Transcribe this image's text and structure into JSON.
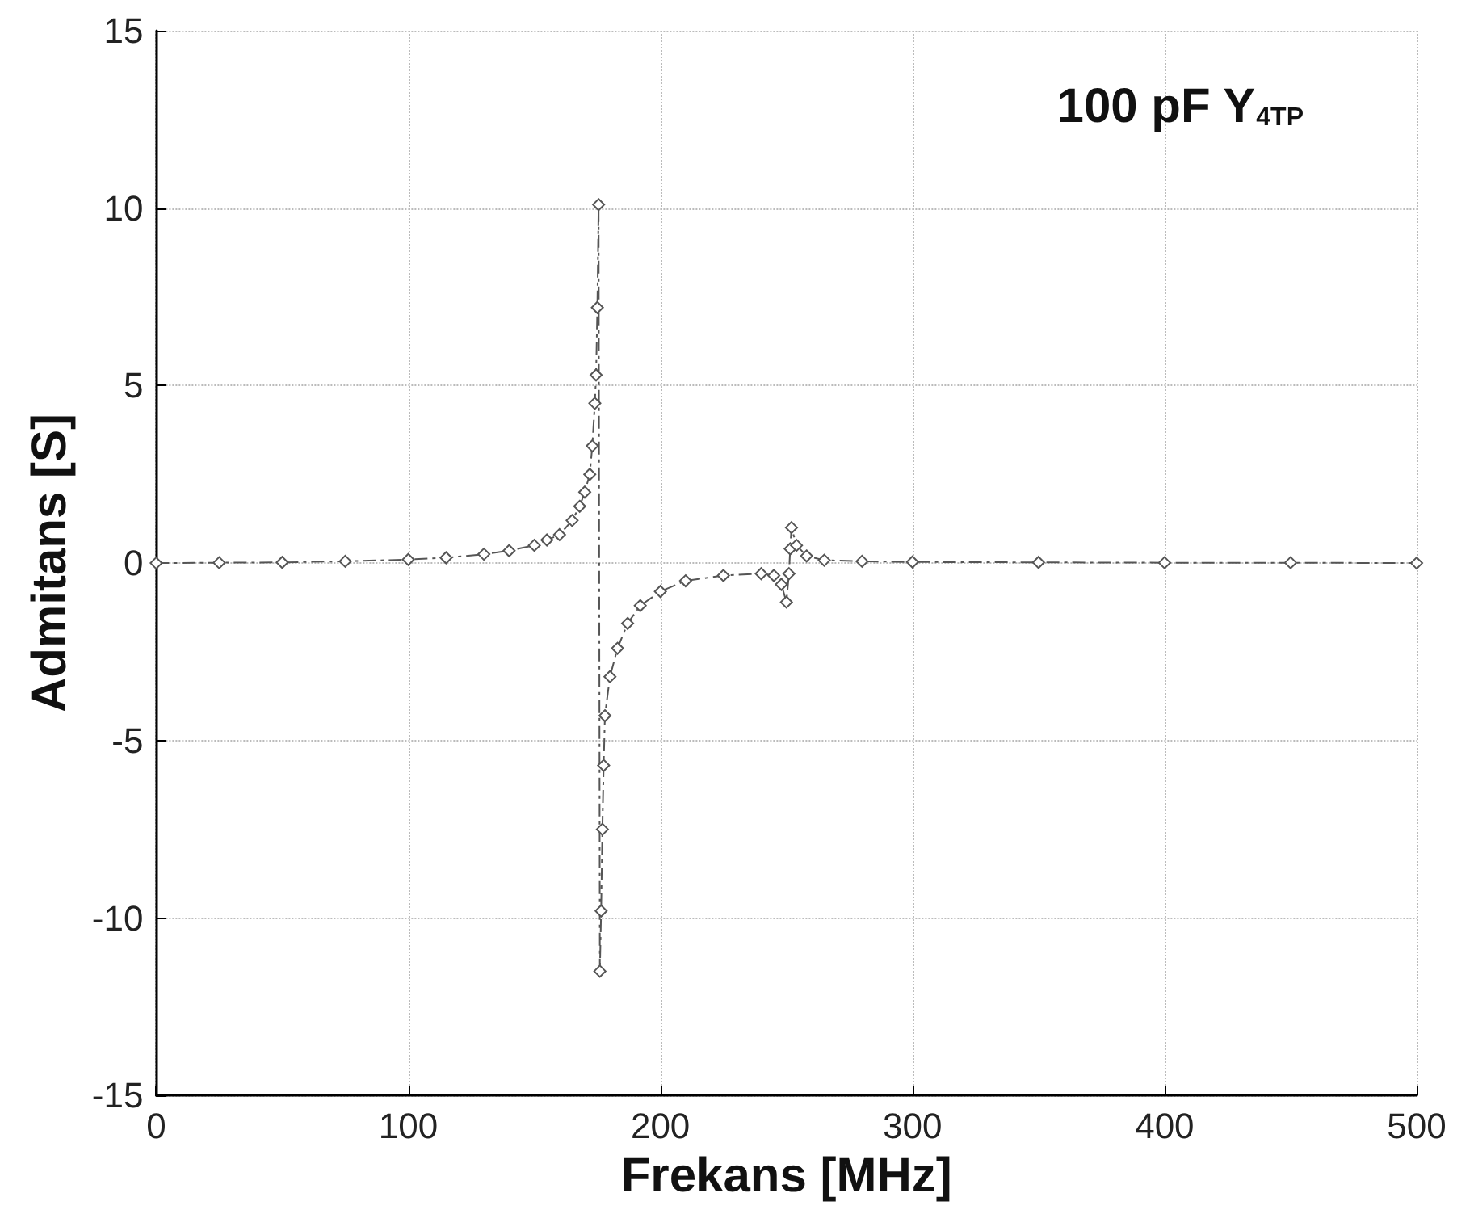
{
  "chart_data": {
    "type": "line",
    "title": "100 pF Y$_{4TP}$",
    "xlabel": "Frekans [MHz]",
    "ylabel": "Admitans [S]",
    "xlim": [
      0,
      500
    ],
    "xticks": [
      0,
      100,
      200,
      300,
      400,
      500
    ],
    "ylim": [
      -15,
      15
    ],
    "yticks": [
      -15,
      -10,
      -5,
      0,
      5,
      10,
      15
    ],
    "grid": true,
    "marker": "diamond",
    "line_style": "dashed",
    "series": [
      {
        "color": "#555555",
        "x": [
          0,
          25,
          50,
          75,
          100,
          115,
          130,
          140,
          150,
          155,
          160,
          165,
          168,
          170,
          172,
          173,
          174,
          174.5,
          175,
          175.5,
          176,
          176.5,
          177,
          177.5,
          178,
          180,
          183,
          187,
          192,
          200,
          210,
          225,
          240,
          245,
          248,
          250,
          251,
          251.5,
          252,
          254,
          258,
          265,
          280,
          300,
          350,
          400,
          450,
          500
        ],
        "values": [
          0,
          0.01,
          0.02,
          0.05,
          0.1,
          0.15,
          0.25,
          0.35,
          0.5,
          0.65,
          0.8,
          1.2,
          1.6,
          2.0,
          2.5,
          3.3,
          4.5,
          5.3,
          7.2,
          10.1,
          -11.5,
          -9.8,
          -7.5,
          -5.7,
          -4.3,
          -3.2,
          -2.4,
          -1.7,
          -1.2,
          -0.8,
          -0.5,
          -0.35,
          -0.3,
          -0.35,
          -0.6,
          -1.1,
          -0.3,
          0.4,
          1.0,
          0.5,
          0.2,
          0.08,
          0.05,
          0.03,
          0.02,
          0.01,
          0.01,
          0
        ]
      }
    ]
  }
}
